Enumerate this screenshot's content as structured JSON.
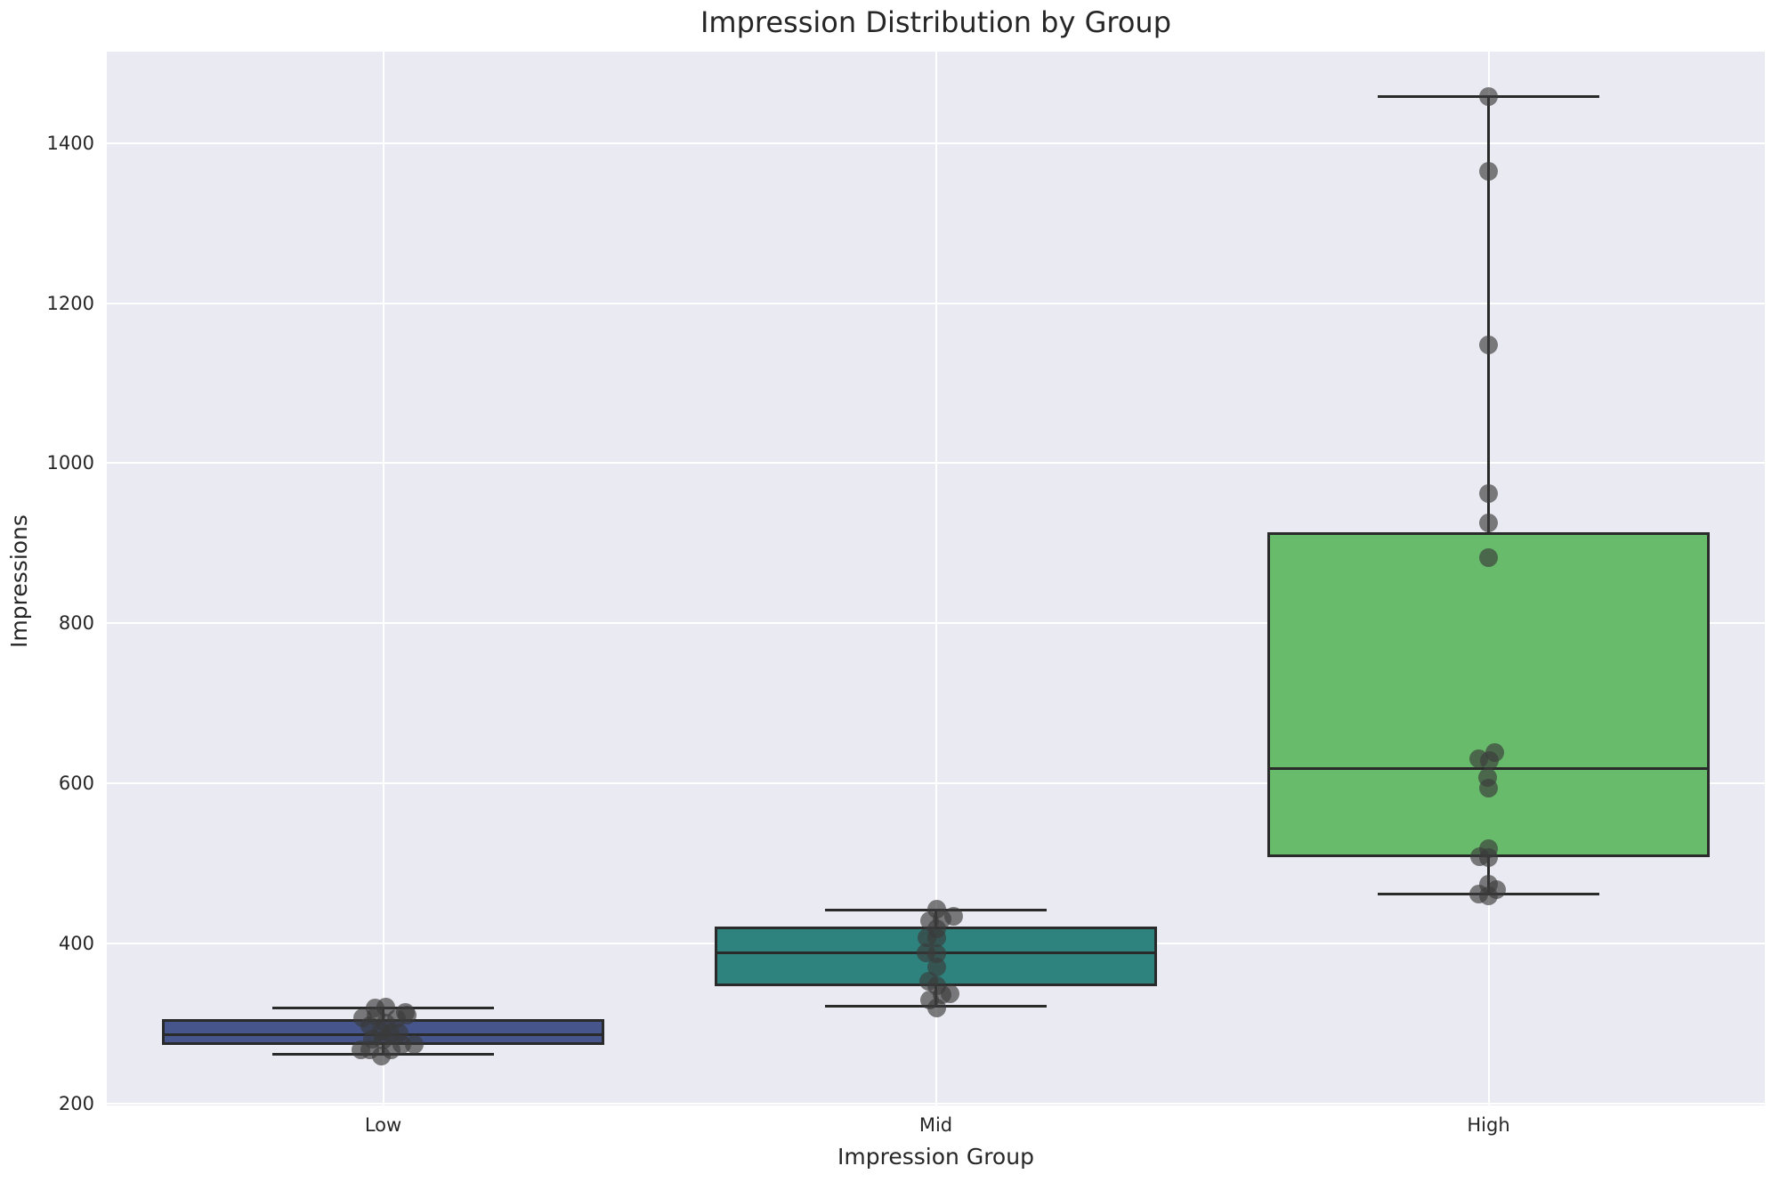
{
  "title": "Impression Distribution by Group",
  "chart_data": {
    "type": "box",
    "title": "Impression Distribution by Group",
    "xlabel": "Impression Group",
    "ylabel": "Impressions",
    "categories": [
      "Low",
      "Mid",
      "High"
    ],
    "ylim": [
      198,
      1514
    ],
    "yticks": [
      200,
      400,
      600,
      800,
      1000,
      1200,
      1400
    ],
    "grid": true,
    "legend": "none",
    "plot_background": "#eaeaf2",
    "grid_color": "#ffffff",
    "edge_color": "#2a2a2a",
    "point_color": "#3a3a3a",
    "point_opacity": 0.65,
    "series": [
      {
        "name": "Low",
        "color": "#46568c",
        "box": {
          "whisker_low": 262,
          "q1": 274,
          "median": 286,
          "q3": 306,
          "whisker_high": 320
        },
        "points": [
          [
            321,
            3
          ],
          [
            320,
            -9
          ],
          [
            314,
            25
          ],
          [
            311,
            27
          ],
          [
            310,
            -8
          ],
          [
            308,
            -23
          ],
          [
            306,
            15
          ],
          [
            301,
            3
          ],
          [
            297,
            -15
          ],
          [
            291,
            -2
          ],
          [
            289,
            18
          ],
          [
            287,
            8
          ],
          [
            281,
            -12
          ],
          [
            280,
            0
          ],
          [
            274,
            21
          ],
          [
            274,
            35
          ],
          [
            268,
            -25
          ],
          [
            268,
            -15
          ],
          [
            267,
            9
          ],
          [
            260,
            -2
          ]
        ]
      },
      {
        "name": "Mid",
        "color": "#2e837e",
        "box": {
          "whisker_low": 322,
          "q1": 347,
          "median": 389,
          "q3": 421,
          "whisker_high": 442
        },
        "points": [
          [
            443,
            1
          ],
          [
            434,
            20
          ],
          [
            431,
            7
          ],
          [
            429,
            -7
          ],
          [
            419,
            1
          ],
          [
            408,
            -10
          ],
          [
            407,
            1
          ],
          [
            389,
            -11
          ],
          [
            388,
            1
          ],
          [
            371,
            1
          ],
          [
            353,
            -8
          ],
          [
            348,
            1
          ],
          [
            337,
            16
          ],
          [
            336,
            7
          ],
          [
            330,
            -7
          ],
          [
            320,
            1
          ]
        ]
      },
      {
        "name": "High",
        "color": "#67bb6a",
        "box": {
          "whisker_low": 462,
          "q1": 508,
          "median": 619,
          "q3": 914,
          "whisker_high": 1458
        },
        "points": [
          [
            1458,
            0
          ],
          [
            1365,
            0
          ],
          [
            1148,
            0
          ],
          [
            962,
            0
          ],
          [
            925,
            0
          ],
          [
            882,
            0
          ],
          [
            639,
            7
          ],
          [
            631,
            -11
          ],
          [
            629,
            1
          ],
          [
            608,
            -1
          ],
          [
            594,
            0
          ],
          [
            519,
            0
          ],
          [
            509,
            -10
          ],
          [
            507,
            0
          ],
          [
            474,
            0
          ],
          [
            468,
            9
          ],
          [
            462,
            -11
          ],
          [
            460,
            0
          ]
        ]
      }
    ]
  }
}
